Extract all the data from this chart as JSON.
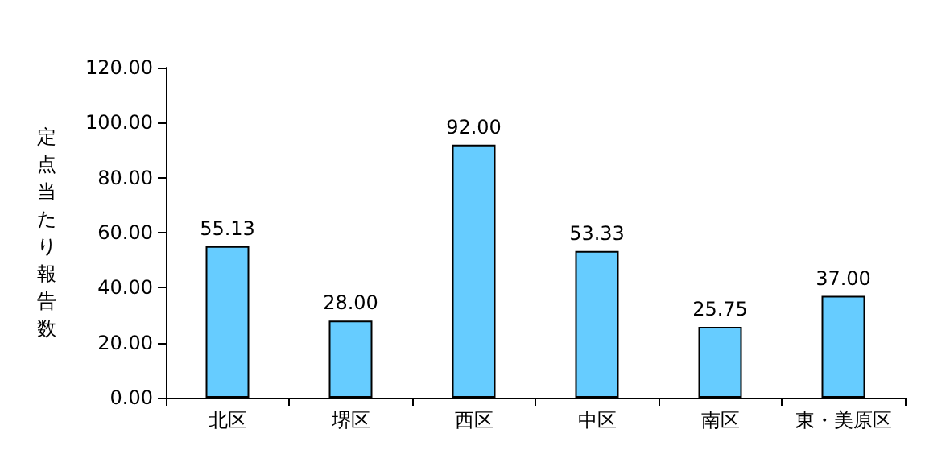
{
  "chart_data": {
    "type": "bar",
    "ylabel": "定点当たり報告数",
    "categories": [
      "北区",
      "堺区",
      "西区",
      "中区",
      "南区",
      "東・美原区"
    ],
    "values": [
      55.13,
      28.0,
      92.0,
      53.33,
      25.75,
      37.0
    ],
    "value_labels": [
      "55.13",
      "28.00",
      "92.00",
      "53.33",
      "25.75",
      "37.00"
    ],
    "color": "#66ccff",
    "ylim": [
      0,
      120
    ],
    "yticks": [
      {
        "value": 0,
        "label": "0.00"
      },
      {
        "value": 20,
        "label": "20.00"
      },
      {
        "value": 40,
        "label": "40.00"
      },
      {
        "value": 60,
        "label": "60.00"
      },
      {
        "value": 80,
        "label": "80.00"
      },
      {
        "value": 100,
        "label": "100.00"
      },
      {
        "value": 120,
        "label": "120.00"
      }
    ],
    "grid": false
  }
}
